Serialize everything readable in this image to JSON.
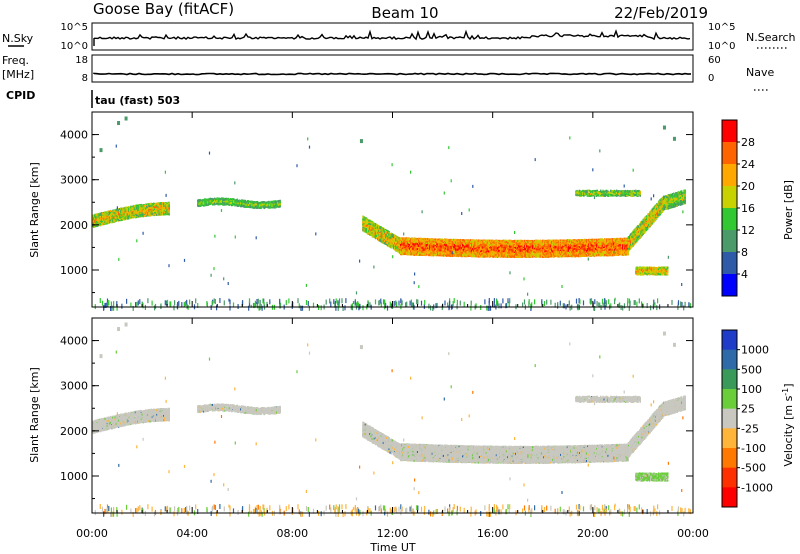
{
  "header": {
    "station": "Goose Bay (fitACF)",
    "beam": "Beam 10",
    "date": "22/Feb/2019"
  },
  "top_panels": {
    "nsky_label": "N.Sky",
    "nsky_ticks": [
      "10^5",
      "10^0"
    ],
    "nsearch_label": "N.Search",
    "nsearch_ticks": [
      "10^5",
      "10^0"
    ],
    "freq_label_1": "Freq.",
    "freq_label_2": "[MHz]",
    "freq_ticks": [
      "18",
      "8"
    ],
    "nave_label": "Nave",
    "nave_ticks": [
      "60",
      "0"
    ],
    "cpid_label": "CPID",
    "cpid_value": "tau (fast) 503"
  },
  "chart_data": [
    {
      "type": "heatmap",
      "panel": "power",
      "ylabel": "Slant Range [km]",
      "yticks": [
        "4000",
        "3000",
        "2000",
        "1000"
      ],
      "ylim": [
        180,
        4500
      ],
      "xlim_hours": [
        0,
        24
      ],
      "colorbar_label": "Power [dB]",
      "colorbar_ticks": [
        "28",
        "24",
        "20",
        "16",
        "12",
        "8",
        "4"
      ],
      "colorbar_colors": [
        "#ff0000",
        "#ff6400",
        "#ffa800",
        "#c8d200",
        "#32c832",
        "#4a9a6a",
        "#2e5aa8",
        "#0000ff"
      ],
      "echo_regions": [
        {
          "t_start": 0.0,
          "t_end": 3.1,
          "range_center_km": [
            2100,
            2380
          ],
          "value": "12-20 dB"
        },
        {
          "t_start": 4.2,
          "t_end": 7.5,
          "range_center_km": [
            2500,
            2500
          ],
          "value": "12-16 dB"
        },
        {
          "t_start": 10.8,
          "t_end": 22.4,
          "range_center_km": [
            1900,
            1500
          ],
          "value": "16-28 dB"
        },
        {
          "t_start": 19.2,
          "t_end": 21.8,
          "range_center_km": [
            2700,
            2700
          ],
          "value": "8-16 dB"
        },
        {
          "t_start": 21.6,
          "t_end": 23.0,
          "range_center_km": [
            1000,
            1000
          ],
          "value": "12-20 dB"
        },
        {
          "t_start": 22.2,
          "t_end": 23.6,
          "range_center_km": [
            2300,
            2500
          ],
          "value": "8-16 dB"
        }
      ]
    },
    {
      "type": "heatmap",
      "panel": "velocity",
      "ylabel": "Slant Range [km]",
      "yticks": [
        "4000",
        "3000",
        "2000",
        "1000"
      ],
      "ylim": [
        180,
        4500
      ],
      "xlabel": "Time UT",
      "xticks": [
        "00:00",
        "04:00",
        "08:00",
        "12:00",
        "16:00",
        "20:00",
        "00:00"
      ],
      "colorbar_label": "Velocity [m s",
      "colorbar_label_sup": "-1",
      "colorbar_label_end": "]",
      "colorbar_ticks": [
        "1000",
        "500",
        "100",
        "25",
        "-25",
        "-100",
        "-500",
        "-1000"
      ],
      "colorbar_colors": [
        "#1e3cc8",
        "#2e6aa8",
        "#3a9a5a",
        "#6acd3a",
        "#c8c8c0",
        "#ffb43a",
        "#ff7800",
        "#ff3000",
        "#ff0000"
      ]
    }
  ]
}
